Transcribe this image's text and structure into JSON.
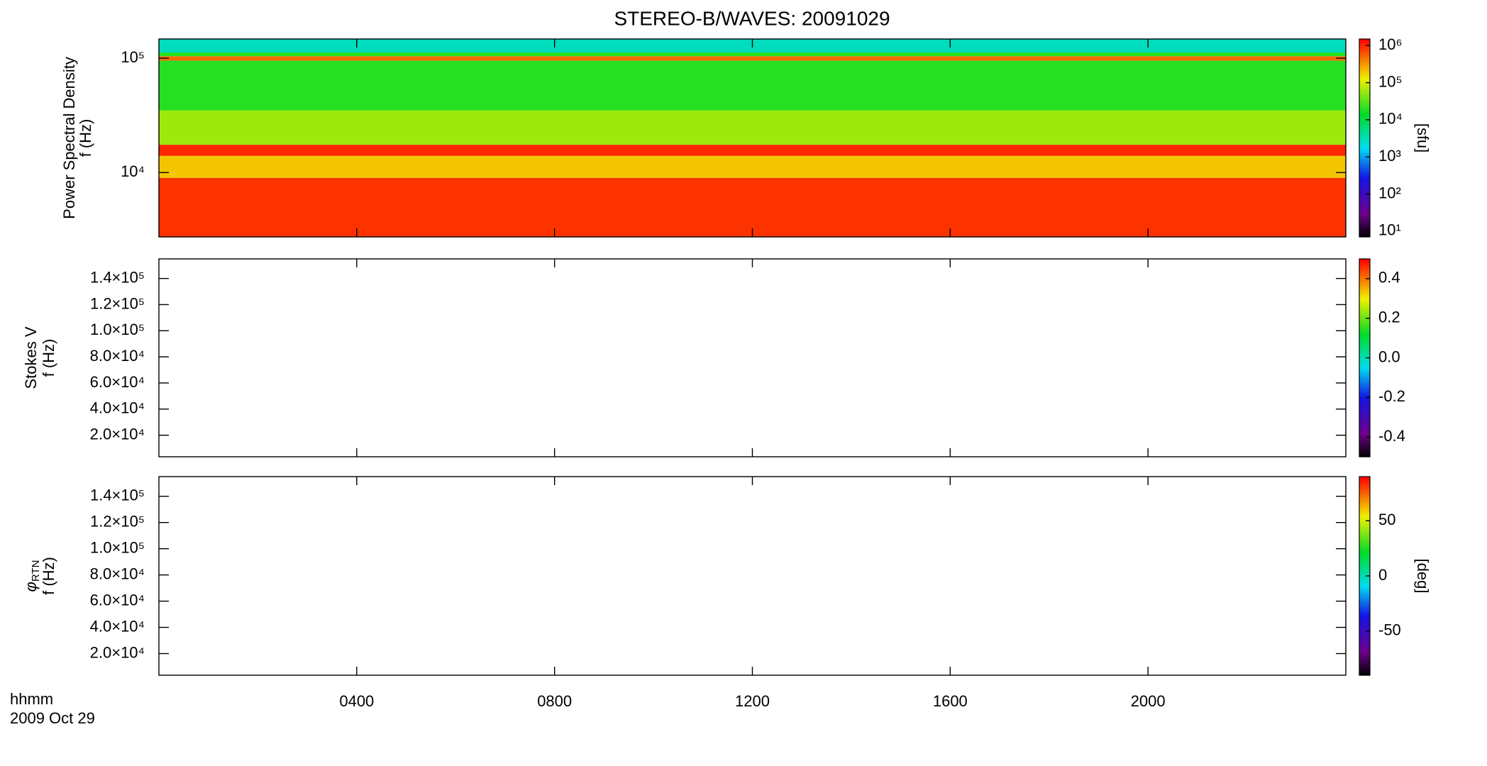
{
  "title": "STEREO-B/WAVES: 20091029",
  "time_axis": {
    "label": "hhmm",
    "date": "2009 Oct 29",
    "xlim": [
      0,
      24
    ],
    "xticks": [
      {
        "value": 4,
        "label": "0400"
      },
      {
        "value": 8,
        "label": "0800"
      },
      {
        "value": 12,
        "label": "1200"
      },
      {
        "value": 16,
        "label": "1600"
      },
      {
        "value": 20,
        "label": "2000"
      }
    ]
  },
  "chart_data": [
    {
      "type": "heatmap",
      "ylabel": "Power Spectral Density",
      "ylabel2": "f (Hz)",
      "ylog": true,
      "ylim": [
        2740,
        147000
      ],
      "yticks": [
        {
          "value": 10000,
          "label": "10⁴"
        },
        {
          "value": 100000,
          "label": "10⁵"
        }
      ],
      "y_bins": [
        2740,
        9000,
        14000,
        17500,
        35000,
        95000,
        104000,
        112000,
        147000
      ],
      "values": [
        900000,
        200000,
        1000000,
        60000,
        20000,
        500000,
        20000,
        3000
      ],
      "colorbar": {
        "log": true,
        "zlim": [
          7,
          1500000
        ],
        "label": "[sfu]",
        "zticks": [
          {
            "value": 10,
            "label": "10¹"
          },
          {
            "value": 100,
            "label": "10²"
          },
          {
            "value": 1000,
            "label": "10³"
          },
          {
            "value": 10000,
            "label": "10⁴"
          },
          {
            "value": 100000,
            "label": "10⁵"
          },
          {
            "value": 1000000,
            "label": "10⁶"
          }
        ]
      }
    },
    {
      "type": "heatmap",
      "ylabel": "Stokes V",
      "ylabel2": "f (Hz)",
      "ylog": false,
      "ylim": [
        3500,
        155000
      ],
      "yticks": [
        {
          "value": 20000,
          "label": "2.0×10⁴"
        },
        {
          "value": 40000,
          "label": "4.0×10⁴"
        },
        {
          "value": 60000,
          "label": "6.0×10⁴"
        },
        {
          "value": 80000,
          "label": "8.0×10⁴"
        },
        {
          "value": 100000,
          "label": "1.0×10⁵"
        },
        {
          "value": 120000,
          "label": "1.2×10⁵"
        },
        {
          "value": 140000,
          "label": "1.4×10⁵"
        }
      ],
      "colorbar": {
        "log": false,
        "zlim": [
          -0.5,
          0.5
        ],
        "zticks": [
          -0.4,
          -0.2,
          {
            "value": 0,
            "label": "0.0"
          },
          0.2,
          0.4
        ]
      }
    },
    {
      "type": "heatmap",
      "ylabel_symbol": "φ",
      "ylabel_subscript": "RTN",
      "ylabel2": "f (Hz)",
      "ylog": false,
      "ylim": [
        3500,
        155000
      ],
      "yticks": [
        {
          "value": 20000,
          "label": "2.0×10⁴"
        },
        {
          "value": 40000,
          "label": "4.0×10⁴"
        },
        {
          "value": 60000,
          "label": "6.0×10⁴"
        },
        {
          "value": 80000,
          "label": "8.0×10⁴"
        },
        {
          "value": 100000,
          "label": "1.0×10⁵"
        },
        {
          "value": 120000,
          "label": "1.2×10⁵"
        },
        {
          "value": 140000,
          "label": "1.4×10⁵"
        }
      ],
      "colorbar": {
        "log": false,
        "zlim": [
          -90,
          90
        ],
        "label": "[deg]",
        "zticks": [
          -50,
          0,
          50
        ]
      }
    }
  ]
}
